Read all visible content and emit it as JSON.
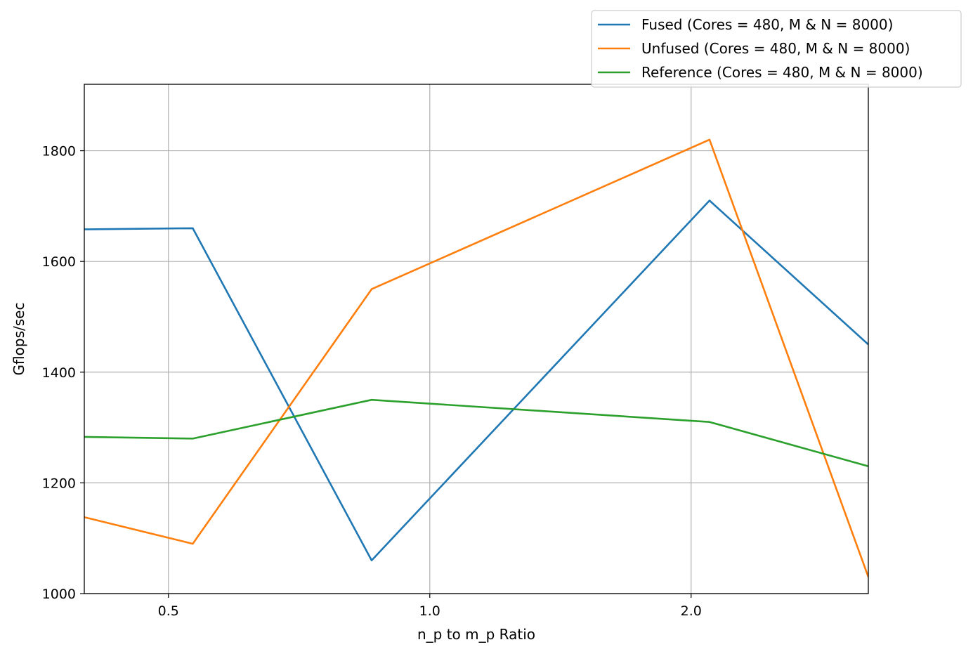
{
  "chart_data": {
    "type": "line",
    "xlabel": "n_p to m_p Ratio",
    "ylabel": "Gflops/sec",
    "x_scale": "log",
    "grid": true,
    "legend_position": "top-right, outside plot",
    "ylim": [
      1000,
      1920
    ],
    "xlim": [
      0.4,
      3.2
    ],
    "x_ticks": [
      {
        "value": 0.5,
        "label": "0.5"
      },
      {
        "value": 1.0,
        "label": "1.0"
      },
      {
        "value": 2.0,
        "label": "2.0"
      }
    ],
    "y_ticks": [
      {
        "value": 1000,
        "label": "1000"
      },
      {
        "value": 1200,
        "label": "1200"
      },
      {
        "value": 1400,
        "label": "1400"
      },
      {
        "value": 1600,
        "label": "1600"
      },
      {
        "value": 1800,
        "label": "1800"
      }
    ],
    "x": [
      0.4,
      0.5333,
      0.8571,
      2.1,
      3.2
    ],
    "series": [
      {
        "name": "Fused (Cores = 480, M & N = 8000)",
        "color": "#1f77b4",
        "values": [
          1658,
          1660,
          1060,
          1710,
          1450
        ]
      },
      {
        "name": "Unfused (Cores = 480, M & N = 8000)",
        "color": "#ff7f0e",
        "values": [
          1138,
          1090,
          1550,
          1820,
          1030
        ]
      },
      {
        "name": "Reference (Cores = 480, M & N = 8000)",
        "color": "#2ca02c",
        "values": [
          1283,
          1280,
          1350,
          1310,
          1230
        ]
      }
    ]
  }
}
